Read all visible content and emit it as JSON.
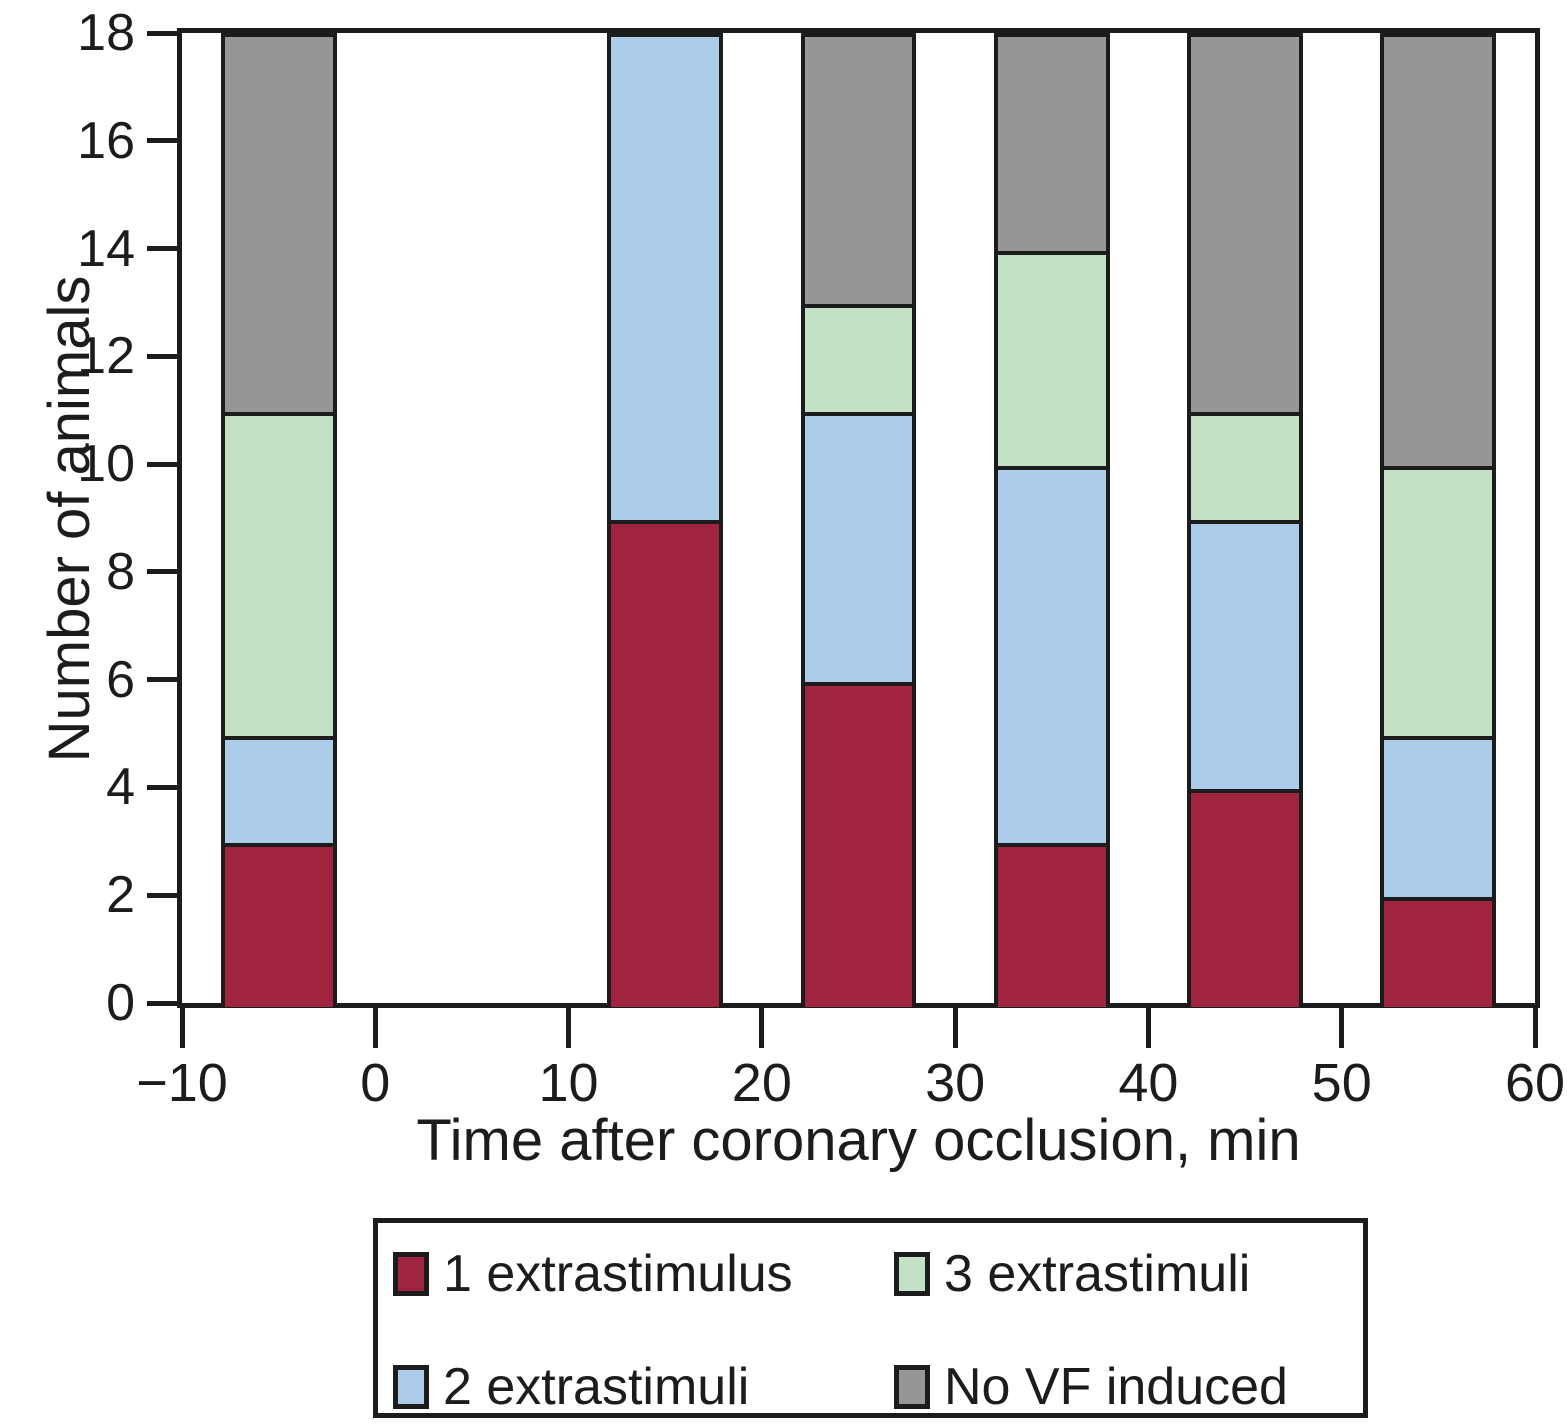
{
  "chart_data": {
    "type": "bar",
    "subtype": "stacked-vertical-histogram",
    "title": "",
    "xlabel": "Time after coronary occlusion, min",
    "ylabel": "Number of animals",
    "xlim": [
      -10,
      60
    ],
    "ylim": [
      0,
      18
    ],
    "x_ticks": [
      -10,
      0,
      10,
      20,
      30,
      40,
      50,
      60
    ],
    "x_tick_labels": [
      "−10",
      "0",
      "10",
      "20",
      "30",
      "40",
      "50",
      "60"
    ],
    "y_ticks": [
      0,
      2,
      4,
      6,
      8,
      10,
      12,
      14,
      16,
      18
    ],
    "y_tick_labels": [
      "0",
      "2",
      "4",
      "6",
      "8",
      "10",
      "12",
      "14",
      "16",
      "18"
    ],
    "grid": false,
    "bar_width_x_units": 6,
    "bar_centers_x": [
      -5,
      15,
      25,
      35,
      45,
      55
    ],
    "bar_total_each": 18,
    "series": [
      {
        "name": "1 extrastimulus",
        "color": "#A02440",
        "values": [
          3,
          9,
          6,
          3,
          4,
          2
        ]
      },
      {
        "name": "2 extrastimuli",
        "color": "#ACCDE9",
        "values": [
          2,
          9,
          5,
          7,
          5,
          3
        ]
      },
      {
        "name": "3 extrastimuli",
        "color": "#C3E1C4",
        "values": [
          6,
          0,
          2,
          4,
          2,
          5
        ]
      },
      {
        "name": "No VF induced",
        "color": "#969696",
        "values": [
          7,
          0,
          5,
          4,
          7,
          8
        ]
      }
    ],
    "legend_position": "bottom"
  },
  "legend": {
    "items": [
      {
        "label": "1 extrastimulus",
        "color": "#A02440"
      },
      {
        "label": "3 extrastimuli",
        "color": "#C3E1C4"
      },
      {
        "label": "2 extrastimuli",
        "color": "#ACCDE9"
      },
      {
        "label": "No VF induced",
        "color": "#969696"
      }
    ]
  },
  "styles": {
    "line_color": "#1c1c1c",
    "background": "#ffffff"
  }
}
